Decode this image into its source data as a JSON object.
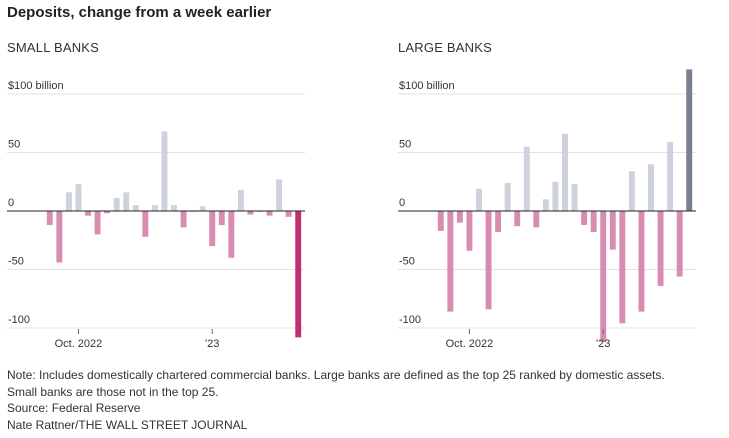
{
  "header": {
    "title": "Deposits, change from a week earlier"
  },
  "footer": {
    "note_line1": "Note: Includes domestically chartered commercial banks. Large banks are defined as the top 25 ranked by domestic assets.",
    "note_line2": "Small banks are those not in the top 25.",
    "source": "Source:  Federal Reserve",
    "credit": "Nate Rattner/THE WALL STREET JOURNAL"
  },
  "colors": {
    "positive": "#cdd2dc",
    "negative": "#d88db0",
    "small_latest": "#c0306f",
    "large_latest": "#7a7e91",
    "gridline": "#e2e2e2",
    "baseline": "#222222"
  },
  "chart_data": [
    {
      "type": "bar",
      "title": "SMALL BANKS",
      "ylim": [
        -105,
        110
      ],
      "yticks": [
        {
          "value": 100,
          "label": "$100 billion"
        },
        {
          "value": 50,
          "label": "50"
        },
        {
          "value": 0,
          "label": "0"
        },
        {
          "value": -50,
          "label": "-50"
        },
        {
          "value": -100,
          "label": "-100"
        }
      ],
      "xticks": [
        {
          "index": 3,
          "label": "Oct. 2022"
        },
        {
          "index": 17,
          "label": "'23"
        }
      ],
      "values": [
        -12,
        -44,
        16,
        23,
        -4,
        -20,
        -2,
        11,
        16,
        5,
        -22,
        5,
        68,
        5,
        -14,
        0,
        4,
        -30,
        -12,
        -40,
        18,
        -3,
        0,
        -4,
        27,
        -5,
        -108
      ],
      "highlight_last": true
    },
    {
      "type": "bar",
      "title": "LARGE BANKS",
      "ylim": [
        -105,
        110
      ],
      "yticks": [
        {
          "value": 100,
          "label": "$100 billion"
        },
        {
          "value": 50,
          "label": "50"
        },
        {
          "value": 0,
          "label": "0"
        },
        {
          "value": -50,
          "label": "-50"
        },
        {
          "value": -100,
          "label": "-100"
        }
      ],
      "xticks": [
        {
          "index": 3,
          "label": "Oct. 2022"
        },
        {
          "index": 17,
          "label": "'23"
        }
      ],
      "values": [
        -17,
        -86,
        -10,
        -34,
        19,
        -84,
        -18,
        24,
        -13,
        55,
        -14,
        10,
        25,
        66,
        23,
        -12,
        -18,
        -112,
        -33,
        -96,
        34,
        -86,
        40,
        -64,
        59,
        -56,
        121
      ],
      "highlight_last": true
    }
  ]
}
